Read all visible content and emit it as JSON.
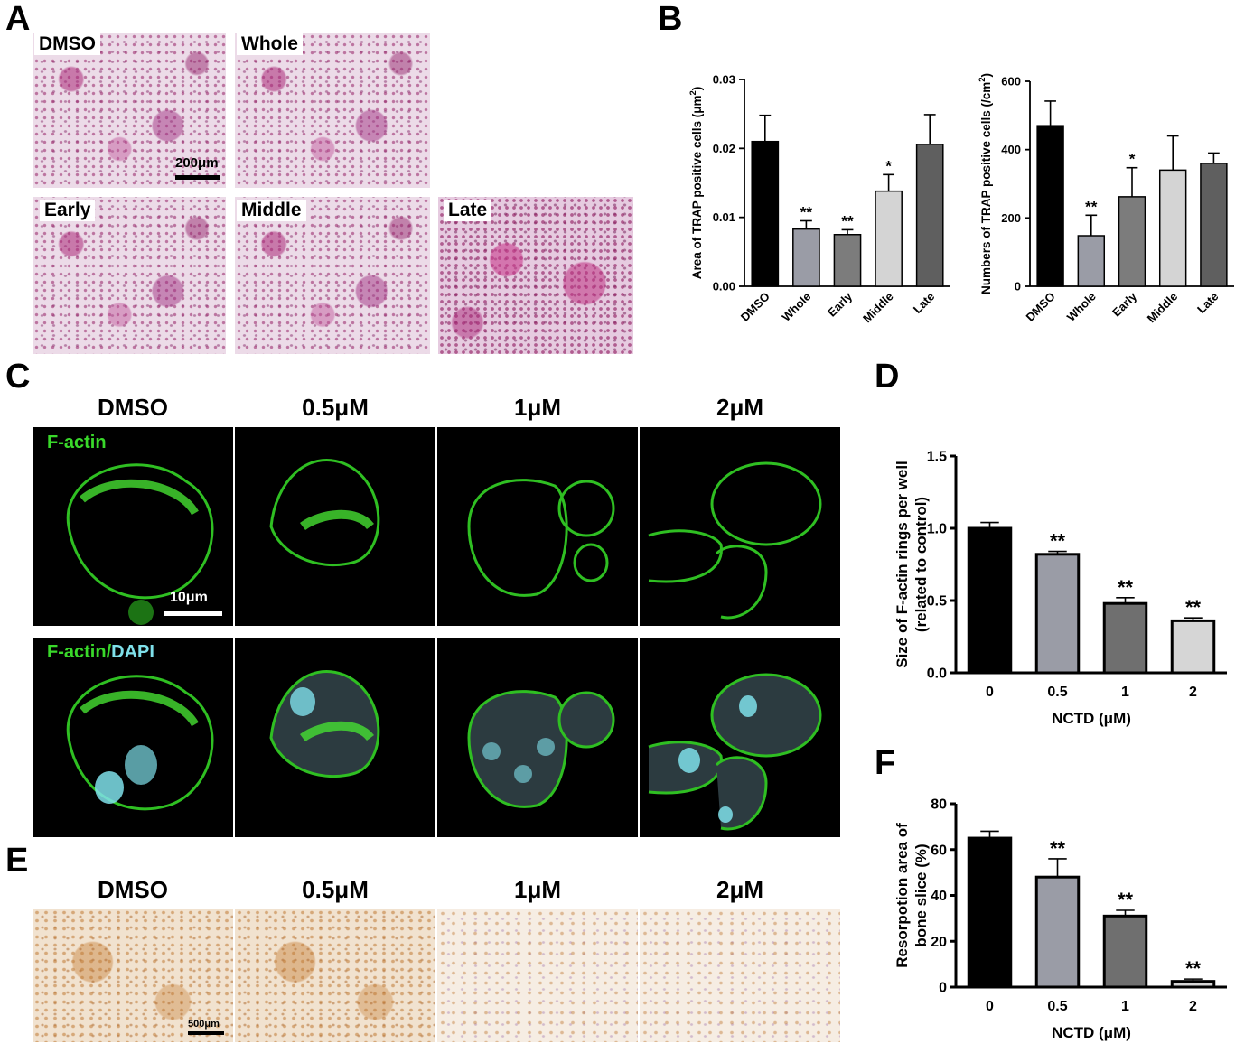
{
  "panels": {
    "A": {
      "letter": "A",
      "images": [
        {
          "label": "DMSO"
        },
        {
          "label": "Whole"
        },
        {
          "label": "Early"
        },
        {
          "label": "Middle"
        },
        {
          "label": "Late"
        }
      ],
      "scalebar": "200μm"
    },
    "B": {
      "letter": "B"
    },
    "C": {
      "letter": "C",
      "columns": [
        "DMSO",
        "0.5μM",
        "1μM",
        "2μM"
      ],
      "row1_label": "F-actin",
      "row2_label_a": "F-actin",
      "row2_label_sep": "/",
      "row2_label_b": "DAPI",
      "scalebar": "10μm",
      "colors": {
        "factin": "#39d82a",
        "dapi": "#7fe0ea"
      }
    },
    "D": {
      "letter": "D"
    },
    "E": {
      "letter": "E",
      "columns": [
        "DMSO",
        "0.5μM",
        "1μM",
        "2μM"
      ],
      "scalebar": "500μm"
    },
    "F": {
      "letter": "F"
    }
  },
  "chart_data": [
    {
      "id": "B-area",
      "type": "bar",
      "categories": [
        "DMSO",
        "Whole",
        "Early",
        "Middle",
        "Late"
      ],
      "values": [
        0.021,
        0.0083,
        0.0075,
        0.0138,
        0.0206
      ],
      "errors": [
        0.0038,
        0.0012,
        0.0007,
        0.0024,
        0.0043
      ],
      "significance": [
        "",
        "**",
        "**",
        "*",
        ""
      ],
      "colors": [
        "#000000",
        "#9a9ca6",
        "#7c7c7c",
        "#d4d4d4",
        "#5f5f5f"
      ],
      "ylabel": "Area of TRAP positive cells (μm",
      "ylabel_sup": "2",
      "ylabel_end": ")",
      "ylim": [
        0,
        0.03
      ],
      "yticks": [
        "0.00",
        "0.01",
        "0.02",
        "0.03"
      ],
      "ytick_values": [
        0,
        0.01,
        0.02,
        0.03
      ]
    },
    {
      "id": "B-number",
      "type": "bar",
      "categories": [
        "DMSO",
        "Whole",
        "Early",
        "Middle",
        "Late"
      ],
      "values": [
        470,
        148,
        262,
        340,
        360
      ],
      "errors": [
        72,
        60,
        85,
        100,
        30
      ],
      "significance": [
        "",
        "**",
        "*",
        "",
        ""
      ],
      "colors": [
        "#000000",
        "#9a9ca6",
        "#7c7c7c",
        "#d4d4d4",
        "#5f5f5f"
      ],
      "ylabel": "Numbers of TRAP positive cells (/cm",
      "ylabel_sup": "2",
      "ylabel_end": ")",
      "ylim": [
        0,
        600
      ],
      "yticks": [
        "0",
        "200",
        "400",
        "600"
      ],
      "ytick_values": [
        0,
        200,
        400,
        600
      ]
    },
    {
      "id": "D",
      "type": "bar",
      "categories": [
        "0",
        "0.5",
        "1",
        "2"
      ],
      "values": [
        1.0,
        0.82,
        0.48,
        0.36
      ],
      "errors": [
        0.04,
        0.02,
        0.04,
        0.02
      ],
      "significance": [
        "",
        "**",
        "**",
        "**"
      ],
      "colors": [
        "#000000",
        "#9a9ca6",
        "#6f6f6f",
        "#d6d6d6"
      ],
      "ylabel_line1": "Size of F-actin rings per well",
      "ylabel_line2": "(related to control)",
      "xlabel": "NCTD (μM)",
      "ylim": [
        0,
        1.5
      ],
      "yticks": [
        "0.0",
        "0.5",
        "1.0",
        "1.5"
      ],
      "ytick_values": [
        0,
        0.5,
        1.0,
        1.5
      ]
    },
    {
      "id": "F",
      "type": "bar",
      "categories": [
        "0",
        "0.5",
        "1",
        "2"
      ],
      "values": [
        65,
        48,
        31,
        2.5
      ],
      "errors": [
        3,
        8,
        2.5,
        1
      ],
      "significance": [
        "",
        "**",
        "**",
        "**"
      ],
      "colors": [
        "#000000",
        "#9a9ca6",
        "#6f6f6f",
        "#d6d6d6"
      ],
      "ylabel_line1": "Resorpotion area of",
      "ylabel_line2": "bone slice (%)",
      "xlabel": "NCTD (μM)",
      "ylim": [
        0,
        80
      ],
      "yticks": [
        "0",
        "20",
        "40",
        "60",
        "80"
      ],
      "ytick_values": [
        0,
        20,
        40,
        60,
        80
      ]
    }
  ]
}
